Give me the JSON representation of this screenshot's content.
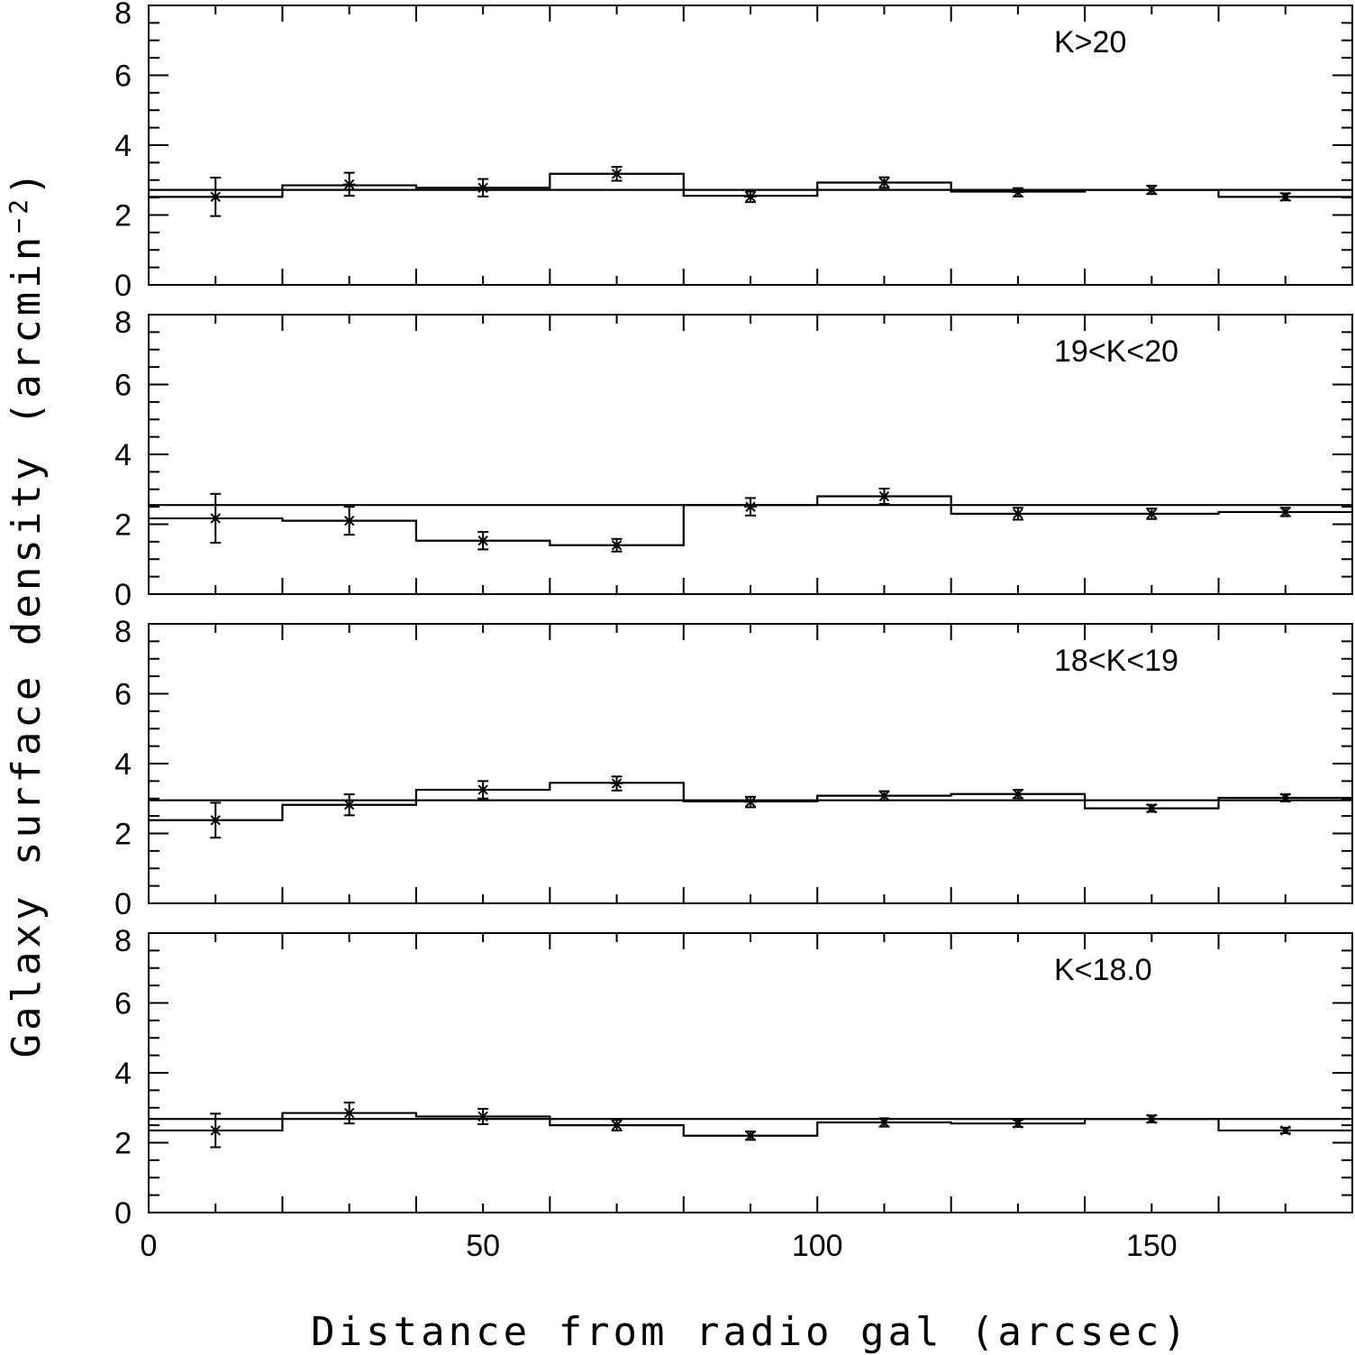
{
  "chart_data": {
    "type": "line",
    "description_style": "four stacked histogram panels with data points, error bars and horizontal mean line",
    "xlabel": "Distance from radio gal (arcsec)",
    "ylabel": "Galaxy surface density (arcmin",
    "ylabel_exponent": "−2",
    "ylabel_close": ")",
    "xlim": [
      0,
      180
    ],
    "ylim": [
      0,
      8
    ],
    "x_ticks": [
      0,
      50,
      100,
      150
    ],
    "y_ticks": [
      0,
      2,
      4,
      6,
      8
    ],
    "bin_edges": [
      0,
      20,
      40,
      60,
      80,
      100,
      120,
      140,
      160,
      180
    ],
    "x": [
      10,
      30,
      50,
      70,
      90,
      110,
      130,
      150,
      170
    ],
    "panels": [
      {
        "label": "K>20",
        "mean": 2.72,
        "hist": [
          2.52,
          2.85,
          2.78,
          3.18,
          2.55,
          2.93,
          2.67,
          2.72,
          2.52
        ],
        "points": [
          2.52,
          2.88,
          2.78,
          3.18,
          2.52,
          2.93,
          2.65,
          2.72,
          2.52
        ],
        "errors": [
          0.55,
          0.33,
          0.25,
          0.2,
          0.15,
          0.15,
          0.12,
          0.12,
          0.1
        ]
      },
      {
        "label": "19<K<20",
        "mean": 2.55,
        "hist": [
          2.17,
          2.1,
          1.53,
          1.4,
          2.55,
          2.8,
          2.3,
          2.3,
          2.35
        ],
        "points": [
          2.17,
          2.1,
          1.53,
          1.4,
          2.5,
          2.8,
          2.3,
          2.3,
          2.35
        ],
        "errors": [
          0.7,
          0.4,
          0.25,
          0.18,
          0.25,
          0.22,
          0.17,
          0.15,
          0.12
        ]
      },
      {
        "label": "18<K<19",
        "mean": 2.95,
        "hist": [
          2.38,
          2.82,
          3.25,
          3.45,
          2.92,
          3.08,
          3.13,
          2.72,
          3.02
        ],
        "points": [
          2.38,
          2.82,
          3.25,
          3.43,
          2.9,
          3.08,
          3.13,
          2.72,
          3.02
        ],
        "errors": [
          0.5,
          0.3,
          0.25,
          0.2,
          0.15,
          0.13,
          0.12,
          0.1,
          0.1
        ]
      },
      {
        "label": "K<18.0",
        "mean": 2.68,
        "hist": [
          2.35,
          2.85,
          2.75,
          2.5,
          2.2,
          2.58,
          2.55,
          2.68,
          2.35
        ],
        "points": [
          2.35,
          2.85,
          2.75,
          2.5,
          2.2,
          2.58,
          2.55,
          2.68,
          2.35
        ],
        "errors": [
          0.48,
          0.3,
          0.22,
          0.15,
          0.12,
          0.12,
          0.1,
          0.1,
          0.08
        ]
      }
    ]
  }
}
